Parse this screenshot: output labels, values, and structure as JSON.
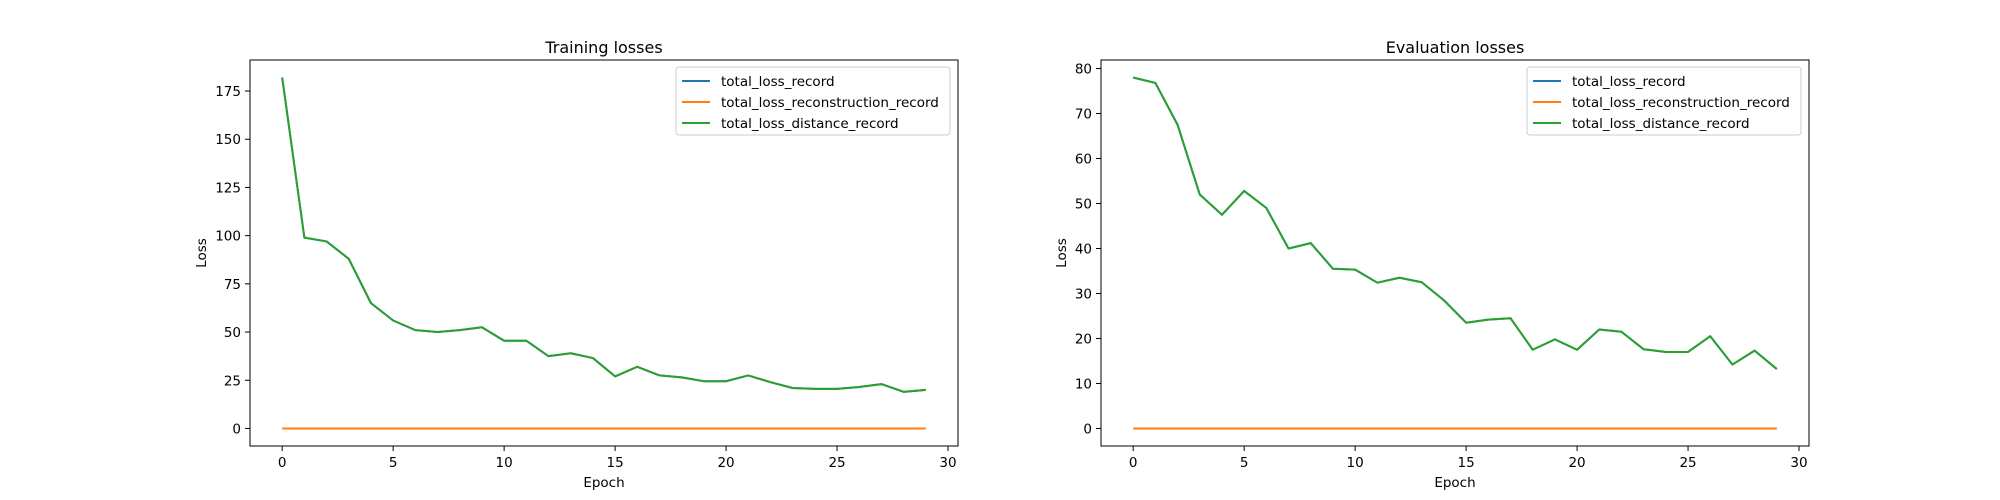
{
  "chart_data": [
    {
      "type": "line",
      "title": "Training losses",
      "xlabel": "Epoch",
      "ylabel": "Loss",
      "xlim": [
        -1.45,
        30.45
      ],
      "ylim": [
        -9.1,
        191.1
      ],
      "xticks": [
        0,
        5,
        10,
        15,
        20,
        25,
        30
      ],
      "yticks": [
        0,
        25,
        50,
        75,
        100,
        125,
        150,
        175
      ],
      "grid": false,
      "legend_position": "top-right",
      "x": [
        0,
        1,
        2,
        3,
        4,
        5,
        6,
        7,
        8,
        9,
        10,
        11,
        12,
        13,
        14,
        15,
        16,
        17,
        18,
        19,
        20,
        21,
        22,
        23,
        24,
        25,
        26,
        27,
        28,
        29
      ],
      "series": [
        {
          "name": "total_loss_record",
          "color": "#1f77b4",
          "values": [
            182,
            99,
            97,
            88,
            65,
            56,
            51,
            50,
            51,
            52.5,
            45.5,
            45.5,
            37.5,
            39,
            36.5,
            27,
            32,
            27.5,
            26.5,
            24.5,
            24.5,
            27.5,
            24,
            21,
            20.5,
            20.5,
            21.5,
            23,
            19,
            20
          ]
        },
        {
          "name": "total_loss_reconstruction_record",
          "color": "#ff7f0e",
          "values": [
            0,
            0,
            0,
            0,
            0,
            0,
            0,
            0,
            0,
            0,
            0,
            0,
            0,
            0,
            0,
            0,
            0,
            0,
            0,
            0,
            0,
            0,
            0,
            0,
            0,
            0,
            0,
            0,
            0,
            0
          ]
        },
        {
          "name": "total_loss_distance_record",
          "color": "#2ca02c",
          "values": [
            182,
            99,
            97,
            88,
            65,
            56,
            51,
            50,
            51,
            52.5,
            45.5,
            45.5,
            37.5,
            39,
            36.5,
            27,
            32,
            27.5,
            26.5,
            24.5,
            24.5,
            27.5,
            24,
            21,
            20.5,
            20.5,
            21.5,
            23,
            19,
            20
          ]
        }
      ]
    },
    {
      "type": "line",
      "title": "Evaluation losses",
      "xlabel": "Epoch",
      "ylabel": "Loss",
      "xlim": [
        -1.45,
        30.45
      ],
      "ylim": [
        -3.9,
        81.9
      ],
      "xticks": [
        0,
        5,
        10,
        15,
        20,
        25,
        30
      ],
      "yticks": [
        0,
        10,
        20,
        30,
        40,
        50,
        60,
        70,
        80
      ],
      "grid": false,
      "legend_position": "top-right",
      "x": [
        0,
        1,
        2,
        3,
        4,
        5,
        6,
        7,
        8,
        9,
        10,
        11,
        12,
        13,
        14,
        15,
        16,
        17,
        18,
        19,
        20,
        21,
        22,
        23,
        24,
        25,
        26,
        27,
        28,
        29
      ],
      "series": [
        {
          "name": "total_loss_record",
          "color": "#1f77b4",
          "values": [
            78,
            76.8,
            67.5,
            52,
            47.5,
            52.8,
            49,
            40,
            41.2,
            35.5,
            35.3,
            32.4,
            33.5,
            32.5,
            28.5,
            23.5,
            24.2,
            24.5,
            17.5,
            19.8,
            17.5,
            22,
            21.5,
            17.6,
            17,
            17,
            20.5,
            14.2,
            17.3,
            13.2
          ]
        },
        {
          "name": "total_loss_reconstruction_record",
          "color": "#ff7f0e",
          "values": [
            0,
            0,
            0,
            0,
            0,
            0,
            0,
            0,
            0,
            0,
            0,
            0,
            0,
            0,
            0,
            0,
            0,
            0,
            0,
            0,
            0,
            0,
            0,
            0,
            0,
            0,
            0,
            0,
            0,
            0
          ]
        },
        {
          "name": "total_loss_distance_record",
          "color": "#2ca02c",
          "values": [
            78,
            76.8,
            67.5,
            52,
            47.5,
            52.8,
            49,
            40,
            41.2,
            35.5,
            35.3,
            32.4,
            33.5,
            32.5,
            28.5,
            23.5,
            24.2,
            24.5,
            17.5,
            19.8,
            17.5,
            22,
            21.5,
            17.6,
            17,
            17,
            20.5,
            14.2,
            17.3,
            13.2
          ]
        }
      ]
    }
  ]
}
